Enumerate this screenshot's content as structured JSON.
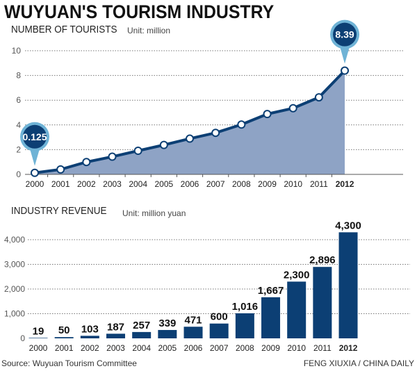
{
  "title": "WUYUAN'S TOURISM INDUSTRY",
  "colors": {
    "navy": "#0c3f74",
    "area": "#8ea3c5",
    "callout": "#6fb3d6"
  },
  "source": "Source: Wuyuan Tourism Committee",
  "credit": "FENG XIUXIA / CHINA DAILY",
  "chart_data": [
    {
      "type": "area",
      "title": "NUMBER OF TOURISTS",
      "unit": "Unit: million",
      "x": [
        "2000",
        "2001",
        "2002",
        "2003",
        "2004",
        "2005",
        "2006",
        "2007",
        "2008",
        "2009",
        "2010",
        "2011",
        "2012"
      ],
      "values": [
        0.125,
        0.4,
        1.0,
        1.43,
        1.91,
        2.38,
        2.89,
        3.36,
        4.03,
        4.88,
        5.35,
        6.23,
        8.39
      ],
      "yticks": [
        "0",
        "2",
        "4",
        "6",
        "8",
        "10"
      ],
      "ylim": [
        0,
        10
      ],
      "grid": true,
      "callouts": [
        {
          "x": "2000",
          "label": "0.125"
        },
        {
          "x": "2012",
          "label": "8.39"
        }
      ]
    },
    {
      "type": "bar",
      "title": "INDUSTRY REVENUE",
      "unit": "Unit: million yuan",
      "categories": [
        "2000",
        "2001",
        "2002",
        "2003",
        "2004",
        "2005",
        "2006",
        "2007",
        "2008",
        "2009",
        "2010",
        "2011",
        "2012"
      ],
      "values": [
        19,
        50,
        103,
        187,
        257,
        339,
        471,
        600,
        1016,
        1667,
        2300,
        2896,
        4300
      ],
      "labels": [
        "19",
        "50",
        "103",
        "187",
        "257",
        "339",
        "471",
        "600",
        "1,016",
        "1,667",
        "2,300",
        "2,896",
        "4,300"
      ],
      "yticks": [
        "0",
        "1,000",
        "2,000",
        "3,000",
        "4,000"
      ],
      "ylim": [
        0,
        4300
      ],
      "grid": true
    }
  ]
}
